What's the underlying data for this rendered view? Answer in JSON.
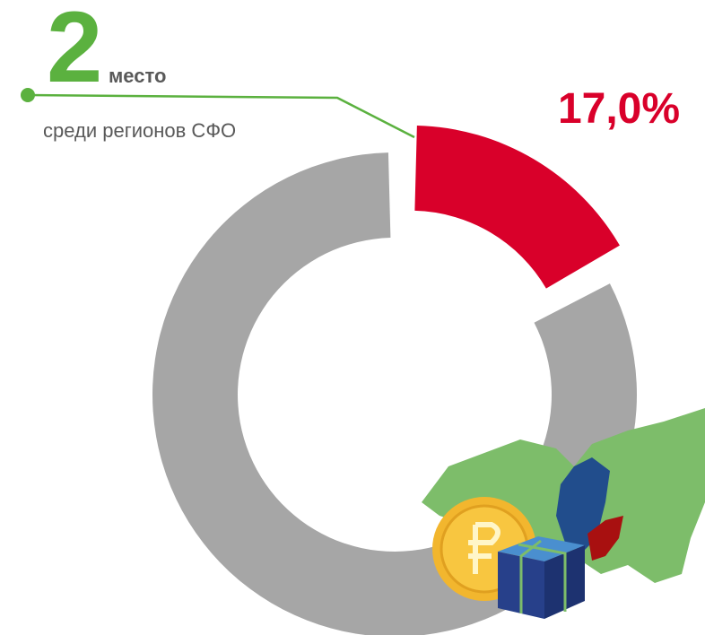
{
  "chart_data": {
    "type": "donut",
    "rank": "2",
    "rank_label": "место",
    "subtitle": "среди регионов СФО",
    "values": [
      17.0,
      83.0
    ],
    "value_labels": [
      "17,0%",
      null
    ],
    "colors": [
      "#d9002a",
      "#a6a6a6"
    ]
  }
}
